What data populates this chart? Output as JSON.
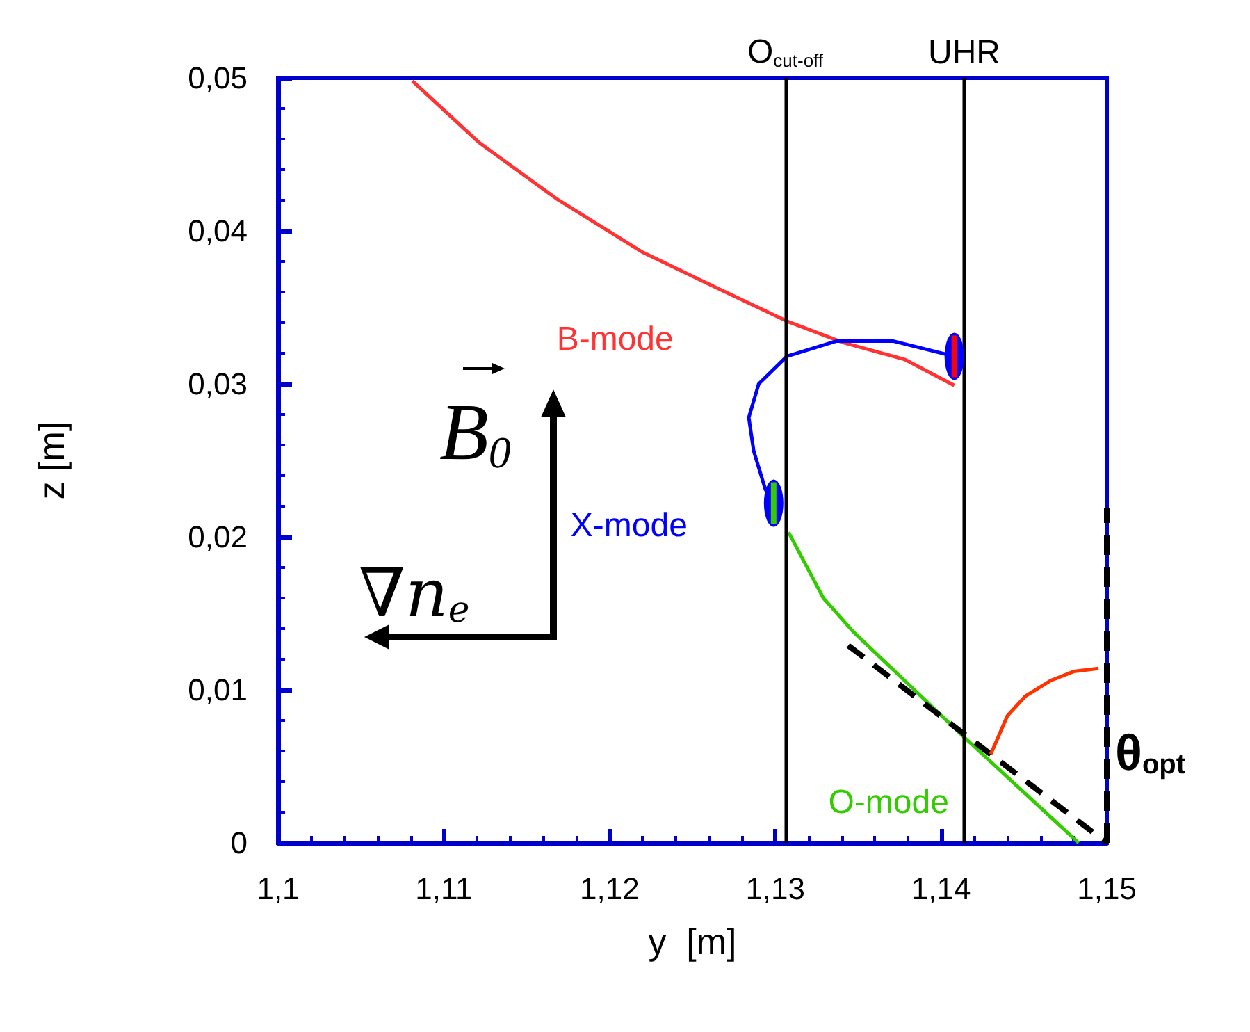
{
  "chart_data": {
    "type": "line",
    "xlabel": "y  [m]",
    "ylabel": "z [m]",
    "xlim": [
      1.1,
      1.15
    ],
    "ylim": [
      0,
      0.05
    ],
    "xticks": [
      {
        "value": 1.1,
        "label": "1,1"
      },
      {
        "value": 1.11,
        "label": "1,11"
      },
      {
        "value": 1.12,
        "label": "1,12"
      },
      {
        "value": 1.13,
        "label": "1,13"
      },
      {
        "value": 1.14,
        "label": "1,14"
      },
      {
        "value": 1.15,
        "label": "1,15"
      }
    ],
    "yticks": [
      0,
      {
        "value": 0.01,
        "label": "0,01"
      },
      {
        "value": 0.02,
        "label": "0,02"
      },
      {
        "value": 0.03,
        "label": "0,03"
      },
      {
        "value": 0.04,
        "label": "0,04"
      },
      {
        "value": 0.05,
        "label": "0,05"
      }
    ],
    "grid": false,
    "legend": false,
    "marker": "none",
    "series": [
      {
        "name": "B-mode",
        "color": "#ff3333",
        "x": [
          1.1081,
          1.1121,
          1.1168,
          1.122,
          1.127,
          1.1307,
          1.1341,
          1.1378,
          1.1408
        ],
        "values": [
          0.0498,
          0.0458,
          0.0421,
          0.0386,
          0.036,
          0.0341,
          0.0327,
          0.0316,
          0.0299
        ]
      },
      {
        "name": "X-mode",
        "color": "#0000ff",
        "x": [
          1.1408,
          1.1371,
          1.1337,
          1.1307,
          1.129,
          1.1284,
          1.1287,
          1.1294,
          1.1299
        ],
        "values": [
          0.0318,
          0.0328,
          0.0328,
          0.0318,
          0.03,
          0.0278,
          0.0256,
          0.0231,
          0.0222
        ]
      },
      {
        "name": "O-mode",
        "color": "#33cc00",
        "x": [
          1.1308,
          1.1329,
          1.1347,
          1.1414,
          1.1483
        ],
        "values": [
          0.0203,
          0.016,
          0.0138,
          0.0069,
          0
        ]
      },
      {
        "color": "#000000",
        "line_style": "dashed",
        "x": [
          1.1344,
          1.15
        ],
        "values": [
          0.0129,
          0
        ]
      },
      {
        "color": "#000000",
        "line_style": "dashed",
        "x": [
          1.15,
          1.15
        ],
        "values": [
          0,
          0.0219
        ]
      },
      {
        "color": "#ff3300",
        "x": [
          1.143,
          1.144,
          1.1451,
          1.1466,
          1.148,
          1.1495
        ],
        "values": [
          0.0058,
          0.0083,
          0.0096,
          0.0106,
          0.0112,
          0.0114
        ]
      }
    ],
    "ref_lines": [
      {
        "axis": "x",
        "value": 1.1306,
        "label": "O$_{cut-off}$",
        "color": "#000000"
      },
      {
        "axis": "x",
        "value": 1.1414,
        "label": "UHR",
        "color": "#000000"
      }
    ],
    "annotations": [
      "B$_{0}$",
      "∇n$_{e}$",
      "θ$_{opt}$"
    ]
  }
}
